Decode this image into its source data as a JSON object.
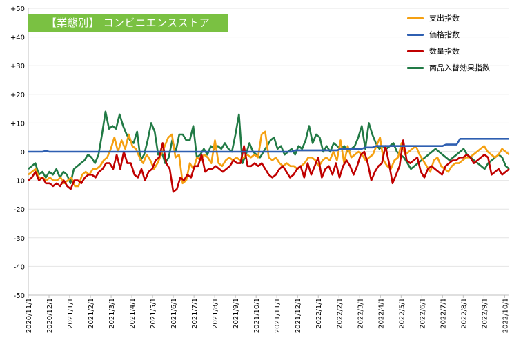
{
  "chart_data": {
    "type": "line",
    "title": "【業態別】 コンビニエンスストア",
    "ylim": [
      -50,
      50
    ],
    "y_ticks": [
      "+50",
      "+40",
      "+30",
      "+20",
      "+10",
      "0",
      "-10",
      "-20",
      "-30",
      "-40",
      "-50"
    ],
    "y_tick_values": [
      50,
      40,
      30,
      20,
      10,
      0,
      -10,
      -20,
      -30,
      -40,
      -50
    ],
    "x_tick_labels": [
      "2020/11/1",
      "2020/12/1",
      "2021/1/1",
      "2021/2/1",
      "2021/3/1",
      "2021/4/1",
      "2021/5/1",
      "2021/6/1",
      "2021/7/1",
      "2021/8/1",
      "2021/9/1",
      "2021/10/1",
      "2021/11/1",
      "2021/12/1",
      "2022/1/1",
      "2022/2/1",
      "2022/3/1",
      "2022/4/1",
      "2022/5/1",
      "2022/6/1",
      "2022/7/1",
      "2022/8/1",
      "2022/9/1",
      "2022/10/1"
    ],
    "x_start": "2020-11-01",
    "x_end": "2022-10-24",
    "series": [
      {
        "name": "支出指数",
        "color": "#f5a011",
        "values": [
          -8,
          -7,
          -6,
          -9,
          -9,
          -10,
          -9,
          -10,
          -10,
          -9,
          -11,
          -10,
          -9,
          -12,
          -12,
          -8,
          -7,
          -8,
          -6,
          -6,
          -5,
          -3,
          -2,
          1,
          5,
          0,
          4,
          1,
          6,
          2,
          1,
          -2,
          -4,
          -1,
          -3,
          -6,
          -4,
          -1,
          2,
          5,
          6,
          -2,
          -1,
          -11,
          -10,
          -4,
          -6,
          -2,
          -3,
          -1,
          -2,
          -4,
          4,
          -4,
          -5,
          -3,
          -2,
          -3,
          -2,
          -3,
          -2,
          -1,
          -2,
          -1,
          -2,
          6,
          7,
          -2,
          -3,
          -2,
          -4,
          -5,
          -4,
          -5,
          -5,
          -6,
          -5,
          -4,
          -2,
          -2,
          -3,
          -5,
          -3,
          -2,
          -3,
          0,
          -3,
          4,
          -4,
          2,
          -2,
          -1,
          0,
          -1,
          -3,
          -2,
          -1,
          2,
          5,
          -3,
          -5,
          -6,
          -3,
          -2,
          3,
          -1,
          0,
          1,
          2,
          -1,
          -3,
          -5,
          -7,
          -3,
          -2,
          -5,
          -6,
          -7,
          -5,
          -4,
          -4,
          -3,
          -2,
          -2,
          -1,
          0,
          1,
          2,
          0,
          -1,
          -2,
          -1,
          1,
          0,
          -1
        ],
        "values_weekly": []
      },
      {
        "name": "価格指数",
        "color": "#2e5fb1",
        "values": [
          0,
          0,
          0,
          0,
          0,
          0.3,
          0,
          0,
          0,
          0,
          0,
          0,
          0,
          0,
          0,
          0,
          0,
          0,
          0,
          0,
          0,
          0,
          0,
          0,
          0,
          0,
          0,
          0,
          0,
          0,
          0,
          0,
          0,
          0,
          0,
          0,
          0,
          0,
          0,
          0,
          0,
          0,
          0,
          0,
          0,
          0,
          0,
          0,
          0,
          0,
          0,
          0,
          0,
          0,
          0,
          0,
          0,
          0,
          0,
          0,
          0,
          0,
          0,
          0,
          0,
          0,
          0,
          0,
          0,
          0,
          0,
          0,
          0,
          0,
          0,
          0,
          0.5,
          0.5,
          0.5,
          0.5,
          0.5,
          0.5,
          0.5,
          0.5,
          0.5,
          0.5,
          0.5,
          0.5,
          0.5,
          1,
          1,
          1,
          1,
          1,
          1,
          1,
          1.5,
          1.5,
          1.5,
          2,
          2,
          2,
          2,
          2,
          2,
          2,
          2,
          2,
          2,
          2,
          2,
          2,
          2,
          2,
          2,
          2,
          2,
          2,
          2,
          2.5,
          2.5,
          2.5,
          2.5,
          4.5,
          4.5,
          4.5,
          4.5,
          4.5,
          4.5,
          4.5,
          4.5,
          4.5,
          4.5,
          4.5,
          4.5,
          4.5,
          4.5,
          4.5
        ]
      },
      {
        "name": "数量指数",
        "color": "#c00000",
        "values": [
          -10,
          -9,
          -7,
          -10,
          -9,
          -11,
          -11,
          -12,
          -11,
          -12,
          -10,
          -12,
          -13,
          -10,
          -10,
          -11,
          -9,
          -8,
          -8,
          -9,
          -7,
          -6,
          -4,
          -4,
          -6,
          -1,
          -6,
          0,
          -4,
          -4,
          -8,
          -9,
          -6,
          -10,
          -7,
          -6,
          -3,
          -2,
          3,
          -4,
          -6,
          -14,
          -13,
          -9,
          -10,
          -8,
          -9,
          -5,
          -5,
          -1,
          -7,
          -6,
          -6,
          -5,
          -6,
          -7,
          -6,
          -5,
          -3,
          -4,
          -4,
          2,
          -5,
          -5,
          -4,
          -5,
          -4,
          -6,
          -8,
          -9,
          -8,
          -6,
          -5,
          -7,
          -9,
          -8,
          -6,
          -5,
          -9,
          -4,
          -8,
          -5,
          -2,
          -9,
          -6,
          -5,
          -8,
          -4,
          -9,
          -5,
          -3,
          -5,
          -8,
          -5,
          -1,
          0,
          -4,
          -10,
          -7,
          -5,
          -4,
          2,
          -4,
          -11,
          -8,
          -5,
          4,
          -3,
          -4,
          -3,
          -2,
          -7,
          -9,
          -6,
          -5,
          -6,
          -7,
          -8,
          -5,
          -4,
          -3,
          -3,
          -2,
          -2,
          -1,
          -2,
          -4,
          -3,
          -2,
          -1,
          -2,
          -8,
          -7,
          -6,
          -8,
          -7,
          -6
        ]
      },
      {
        "name": "商品入替効果指数",
        "color": "#217a45",
        "values": [
          -6,
          -5,
          -4,
          -8,
          -7,
          -9,
          -7,
          -8,
          -6,
          -9,
          -7,
          -8,
          -11,
          -6,
          -5,
          -4,
          -3,
          -1,
          -2,
          -4,
          -1,
          6,
          14,
          8,
          9,
          8,
          13,
          9,
          6,
          4,
          3,
          7,
          -3,
          -1,
          4,
          10,
          7,
          -1,
          0,
          -4,
          -2,
          4,
          0,
          6,
          6,
          4,
          4,
          9,
          -2,
          -1,
          1,
          -1,
          2,
          1,
          2,
          1,
          3,
          1,
          0,
          6,
          13,
          -4,
          -1,
          3,
          0,
          -1,
          -2,
          0,
          2,
          4,
          5,
          1,
          2,
          -1,
          0,
          1,
          -1,
          2,
          1,
          4,
          9,
          3,
          6,
          5,
          0,
          2,
          0,
          3,
          2,
          1,
          2,
          0,
          1,
          2,
          5,
          9,
          1,
          10,
          6,
          3,
          1,
          2,
          1,
          2,
          3,
          0,
          -1,
          -2,
          -4,
          -6,
          -5,
          -4,
          -3,
          -2,
          -1,
          0,
          1,
          0,
          -1,
          -2,
          -3,
          -2,
          -1,
          0,
          1,
          -1,
          -2,
          -3,
          -4,
          -5,
          -6,
          -4,
          -3,
          -2,
          -1,
          -2,
          -5,
          -6
        ]
      }
    ]
  }
}
